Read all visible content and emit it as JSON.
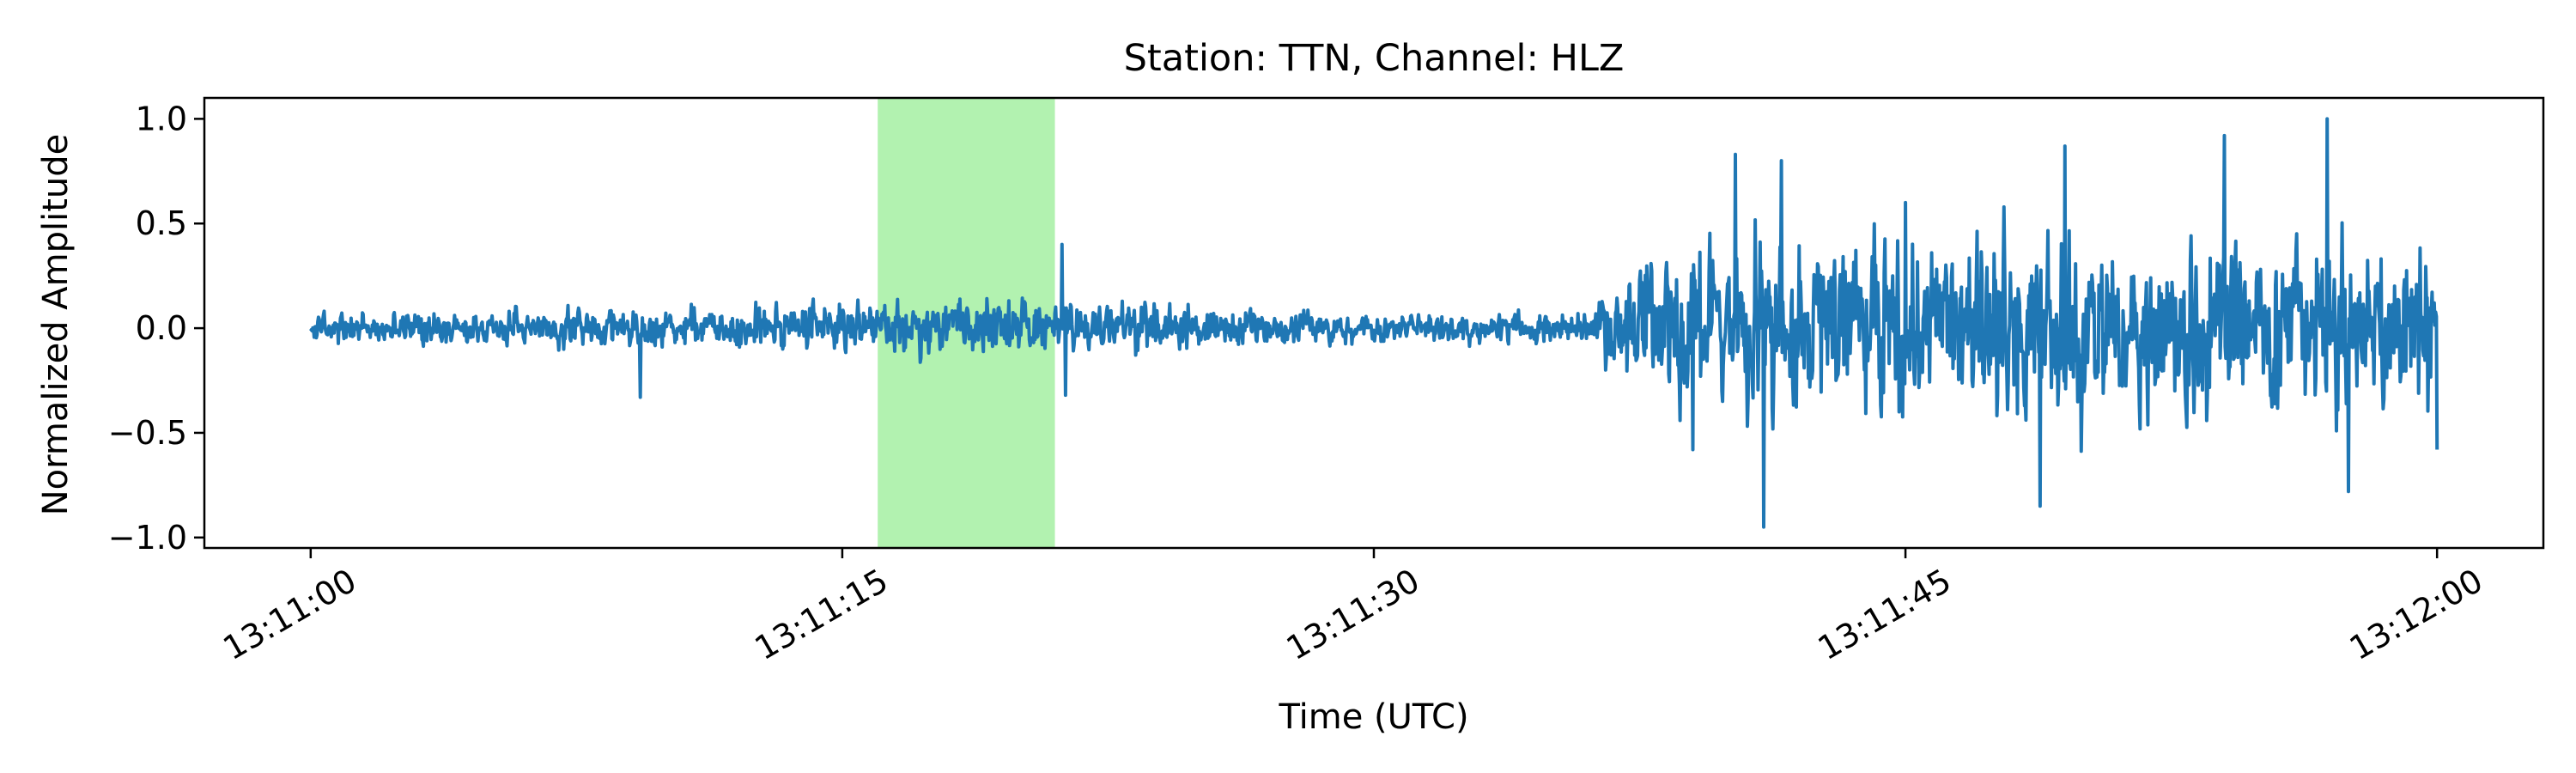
{
  "chart_data": {
    "type": "line",
    "title": "Station: TTN, Channel: HLZ",
    "xlabel": "Time (UTC)",
    "ylabel": "Normalized Amplitude",
    "x_range": [
      "13:11:00",
      "13:12:00"
    ],
    "xlim": [
      "13:10:57",
      "13:12:03"
    ],
    "ylim": [
      -1.05,
      1.1
    ],
    "x_ticks": [
      "13:11:00",
      "13:11:15",
      "13:11:30",
      "13:11:45",
      "13:12:00"
    ],
    "y_ticks": [
      1.0,
      0.5,
      0.0,
      -0.5,
      -1.0
    ],
    "y_tick_labels": [
      "1.0",
      "0.5",
      "0.0",
      "−0.5",
      "−1.0"
    ],
    "highlight_window": {
      "start": "13:11:16",
      "end": "13:11:21",
      "color": "#b2f2b0"
    },
    "series": [
      {
        "color": "#1f77b4",
        "sample_interval_s": 0.02,
        "envelope": [
          {
            "t": "13:11:00",
            "amplitude": 0.1
          },
          {
            "t": "13:11:09",
            "amplitude": 0.12
          },
          {
            "t": "13:11:15",
            "amplitude": 0.16
          },
          {
            "t": "13:11:21",
            "amplitude": 0.18
          },
          {
            "t": "13:11:30",
            "amplitude": 0.09
          },
          {
            "t": "13:11:36",
            "amplitude": 0.1
          },
          {
            "t": "13:11:38",
            "amplitude": 0.55
          },
          {
            "t": "13:11:45",
            "amplitude": 0.6
          },
          {
            "t": "13:12:00",
            "amplitude": 0.55
          }
        ],
        "peaks": [
          {
            "t": "13:11:09.3",
            "value": -0.33
          },
          {
            "t": "13:11:21.2",
            "value": 0.4
          },
          {
            "t": "13:11:21.3",
            "value": -0.32
          },
          {
            "t": "13:11:39.0",
            "value": -0.58
          },
          {
            "t": "13:11:40.2",
            "value": 0.83
          },
          {
            "t": "13:11:41.0",
            "value": -0.95
          },
          {
            "t": "13:11:41.5",
            "value": 0.8
          },
          {
            "t": "13:11:45.0",
            "value": 0.6
          },
          {
            "t": "13:11:48.8",
            "value": -0.85
          },
          {
            "t": "13:11:49.5",
            "value": 0.87
          },
          {
            "t": "13:11:54.0",
            "value": 0.92
          },
          {
            "t": "13:11:56.9",
            "value": 1.0
          },
          {
            "t": "13:11:57.5",
            "value": -0.78
          },
          {
            "t": "13:12:00.0",
            "value": -0.58
          }
        ]
      }
    ],
    "grid": false,
    "legend": "none"
  }
}
